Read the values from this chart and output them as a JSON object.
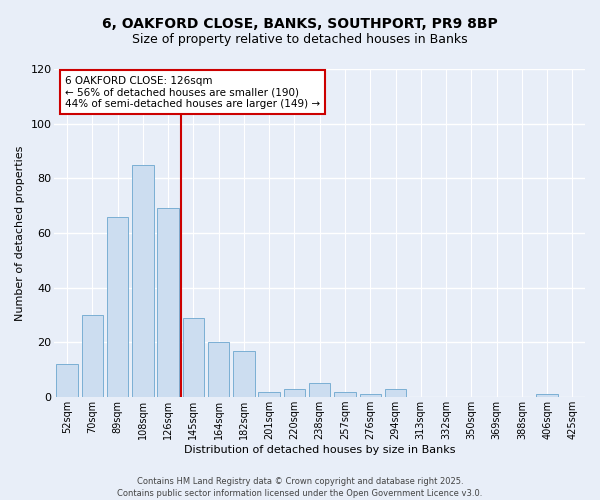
{
  "title_line1": "6, OAKFORD CLOSE, BANKS, SOUTHPORT, PR9 8BP",
  "title_line2": "Size of property relative to detached houses in Banks",
  "xlabel": "Distribution of detached houses by size in Banks",
  "ylabel": "Number of detached properties",
  "categories": [
    "52sqm",
    "70sqm",
    "89sqm",
    "108sqm",
    "126sqm",
    "145sqm",
    "164sqm",
    "182sqm",
    "201sqm",
    "220sqm",
    "238sqm",
    "257sqm",
    "276sqm",
    "294sqm",
    "313sqm",
    "332sqm",
    "350sqm",
    "369sqm",
    "388sqm",
    "406sqm",
    "425sqm"
  ],
  "values": [
    12,
    30,
    66,
    85,
    69,
    29,
    20,
    17,
    2,
    3,
    5,
    2,
    1,
    3,
    0,
    0,
    0,
    0,
    0,
    1,
    0
  ],
  "bar_color": "#ccddf0",
  "bar_edge_color": "#7bafd4",
  "vline_index": 4,
  "vline_color": "#cc0000",
  "ylim": [
    0,
    120
  ],
  "yticks": [
    0,
    20,
    40,
    60,
    80,
    100,
    120
  ],
  "annotation_title": "6 OAKFORD CLOSE: 126sqm",
  "annotation_line1": "← 56% of detached houses are smaller (190)",
  "annotation_line2": "44% of semi-detached houses are larger (149) →",
  "annotation_box_color": "#ffffff",
  "annotation_box_edge": "#cc0000",
  "footer_line1": "Contains HM Land Registry data © Crown copyright and database right 2025.",
  "footer_line2": "Contains public sector information licensed under the Open Government Licence v3.0.",
  "bg_color": "#e8eef8",
  "plot_bg_color": "#e8eef8",
  "title_fontsize": 10,
  "subtitle_fontsize": 9,
  "tick_fontsize": 7,
  "ylabel_fontsize": 8,
  "xlabel_fontsize": 8
}
